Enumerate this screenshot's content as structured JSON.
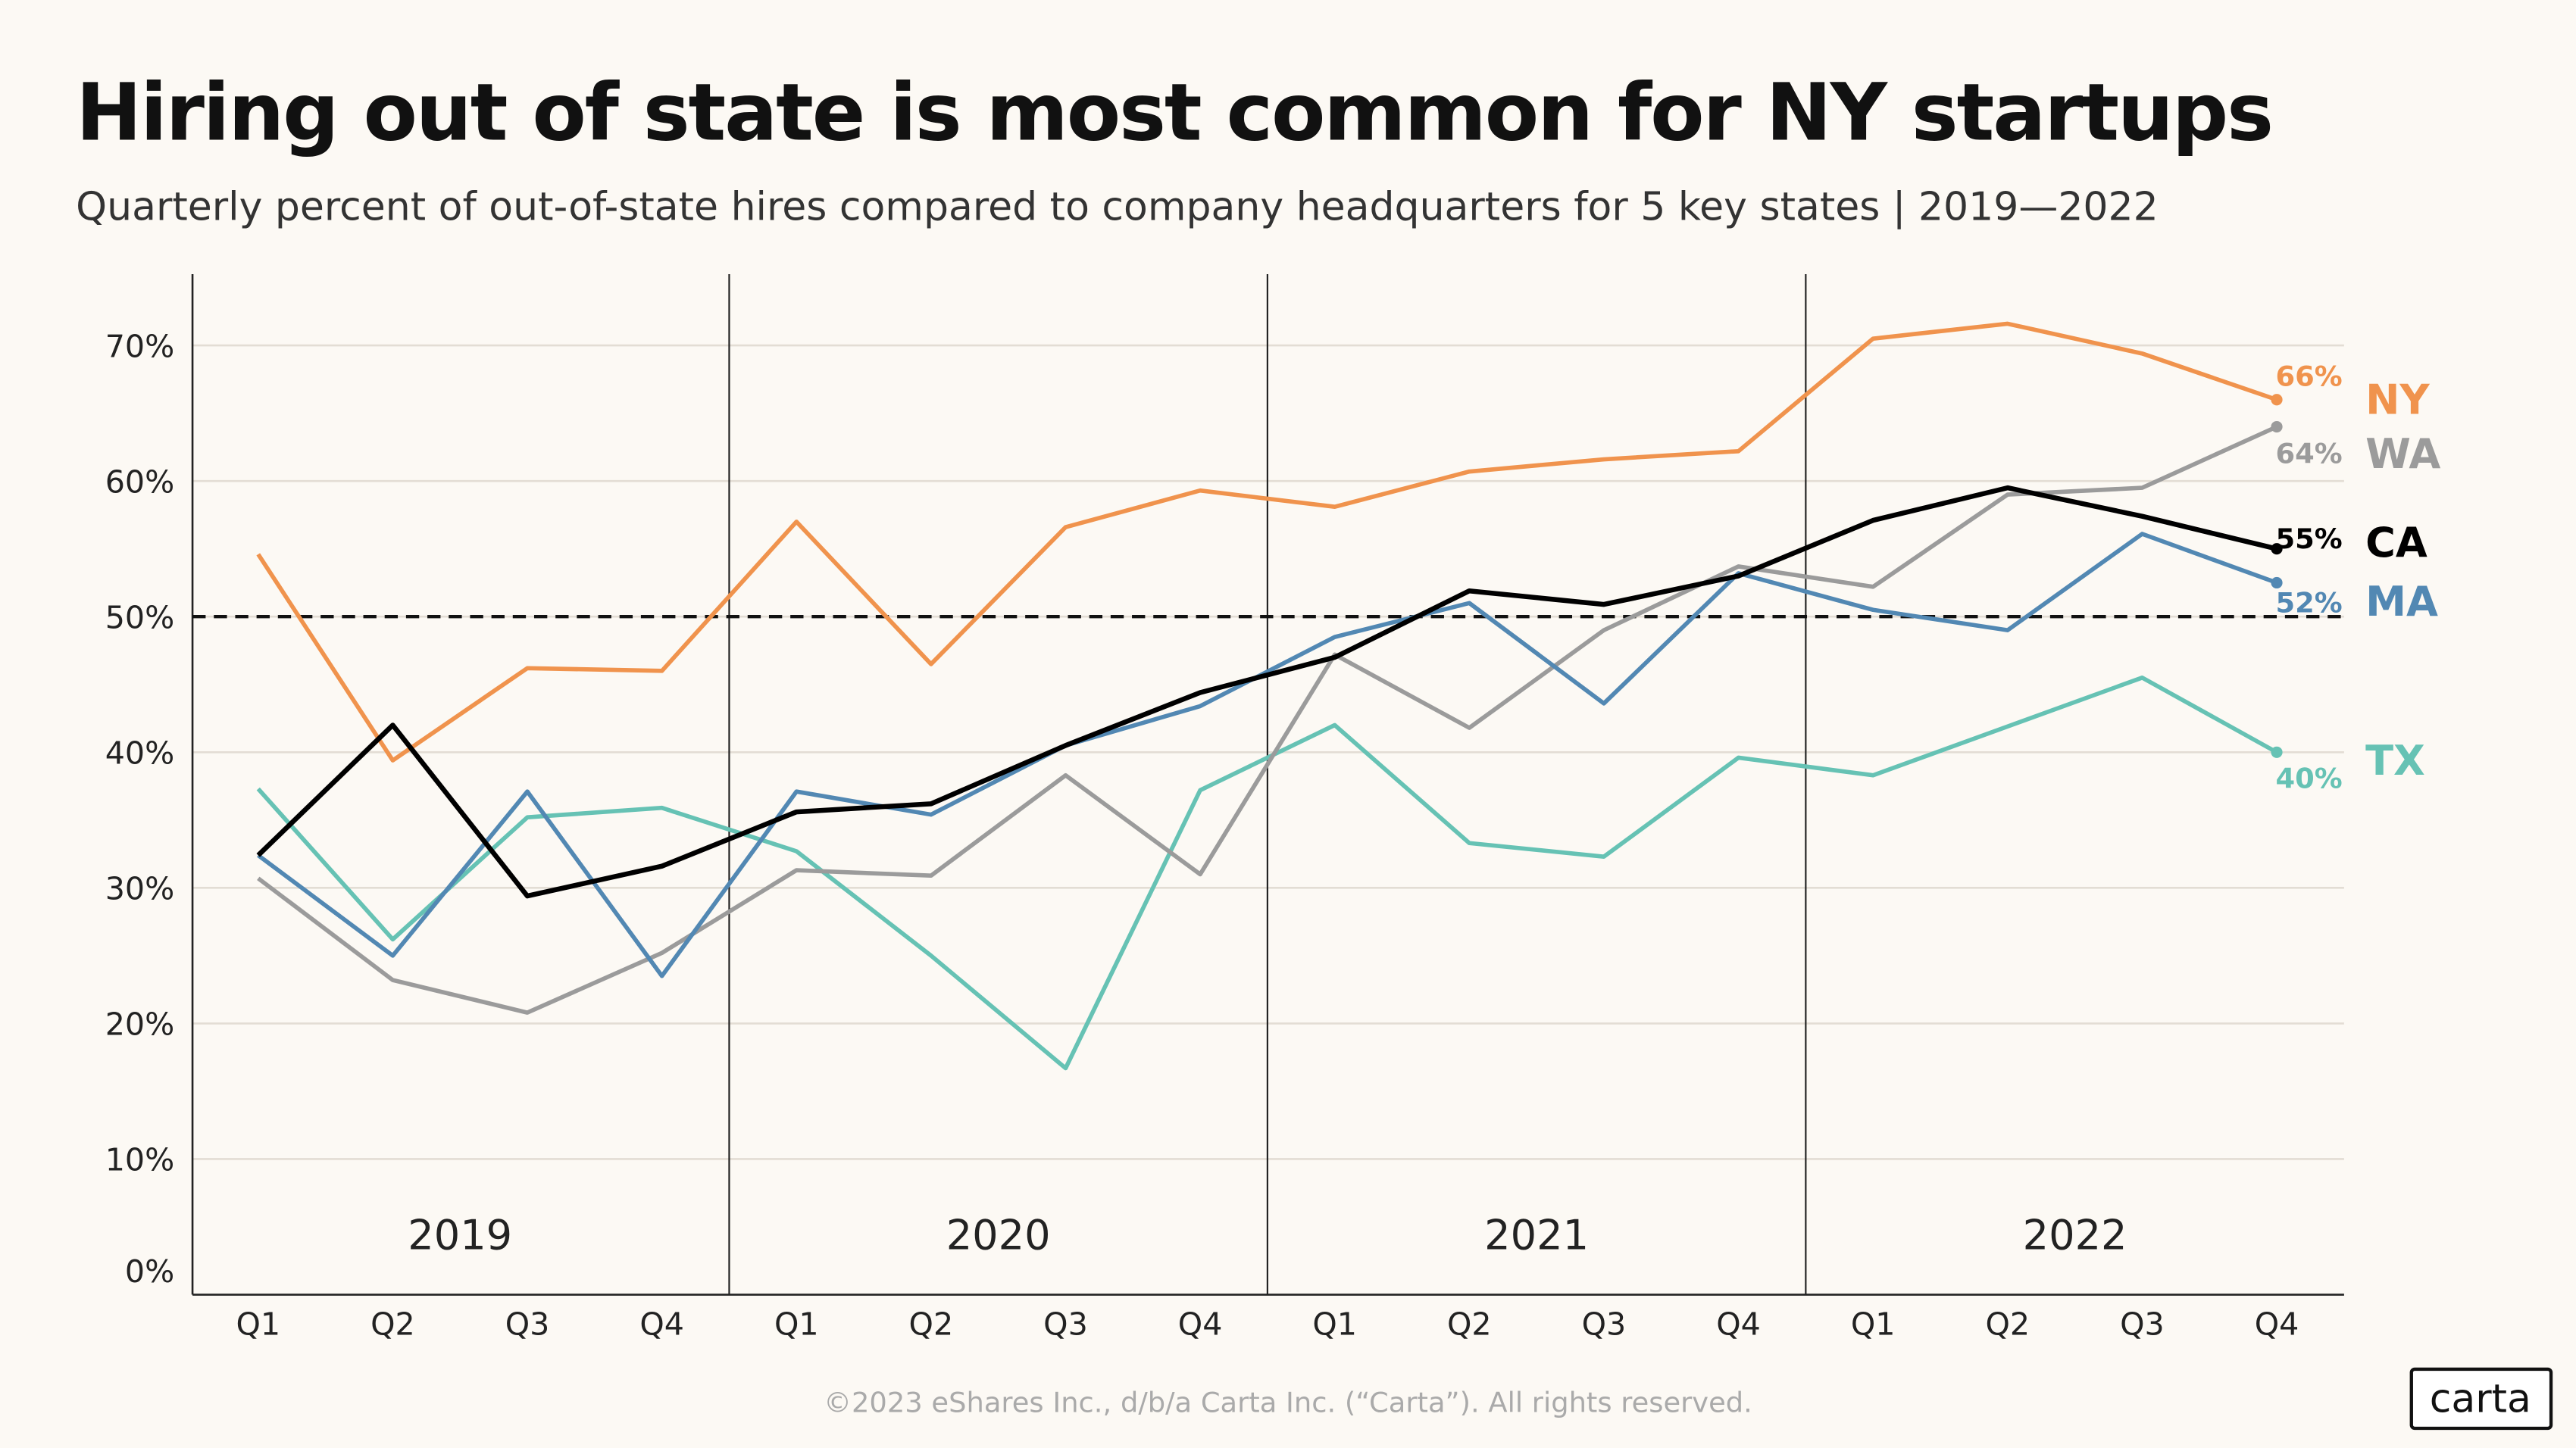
{
  "chart_data": {
    "type": "line",
    "title": "Hiring out of state is most common for NY startups",
    "subtitle": "Quarterly percent of out-of-state hires compared to company headquarters for 5 key states | 2019—2022",
    "years": [
      "2019",
      "2020",
      "2021",
      "2022"
    ],
    "categories": [
      "Q1",
      "Q2",
      "Q3",
      "Q4",
      "Q1",
      "Q2",
      "Q3",
      "Q4",
      "Q1",
      "Q2",
      "Q3",
      "Q4",
      "Q1",
      "Q2",
      "Q3",
      "Q4"
    ],
    "ylim": [
      0,
      75
    ],
    "yticks": [
      0,
      10,
      20,
      30,
      40,
      50,
      60,
      70
    ],
    "ytick_labels": [
      "0%",
      "10%",
      "20%",
      "30%",
      "40%",
      "50%",
      "60%",
      "70%"
    ],
    "reference_line": 50,
    "grid": true,
    "series": [
      {
        "name": "NY",
        "color": "#f0934d",
        "end_label": "66%",
        "values": [
          54.6,
          39.4,
          46.2,
          46.0,
          57.0,
          46.5,
          56.6,
          59.3,
          58.1,
          60.7,
          61.6,
          62.2,
          70.5,
          71.6,
          69.4,
          66
        ]
      },
      {
        "name": "WA",
        "color": "#9b9b9b",
        "end_label": "64%",
        "values": [
          30.7,
          23.2,
          20.8,
          25.2,
          31.3,
          30.9,
          38.3,
          31.0,
          47.2,
          41.8,
          49.0,
          53.7,
          52.2,
          59.0,
          59.5,
          64
        ]
      },
      {
        "name": "CA",
        "color": "#000000",
        "end_label": "55%",
        "values": [
          32.4,
          42.0,
          29.4,
          31.6,
          35.6,
          36.2,
          40.5,
          44.4,
          47.0,
          51.9,
          50.9,
          53.0,
          57.1,
          59.5,
          57.4,
          55
        ]
      },
      {
        "name": "MA",
        "color": "#5288b3",
        "end_label": "52%",
        "values": [
          32.4,
          25.0,
          37.1,
          23.5,
          37.1,
          35.4,
          40.5,
          43.4,
          48.5,
          51.0,
          43.6,
          53.2,
          50.5,
          49.0,
          56.1,
          52.5
        ]
      },
      {
        "name": "TX",
        "color": "#66c2b4",
        "end_label": "40%",
        "values": [
          37.3,
          26.2,
          35.2,
          35.9,
          32.7,
          25.0,
          16.7,
          37.2,
          42.0,
          33.3,
          32.3,
          39.6,
          38.3,
          41.9,
          45.5,
          40
        ]
      }
    ]
  },
  "footer": {
    "copyright": "©2023 eShares Inc., d/b/a Carta Inc. (“Carta”). All rights reserved.",
    "logo": "carta"
  }
}
